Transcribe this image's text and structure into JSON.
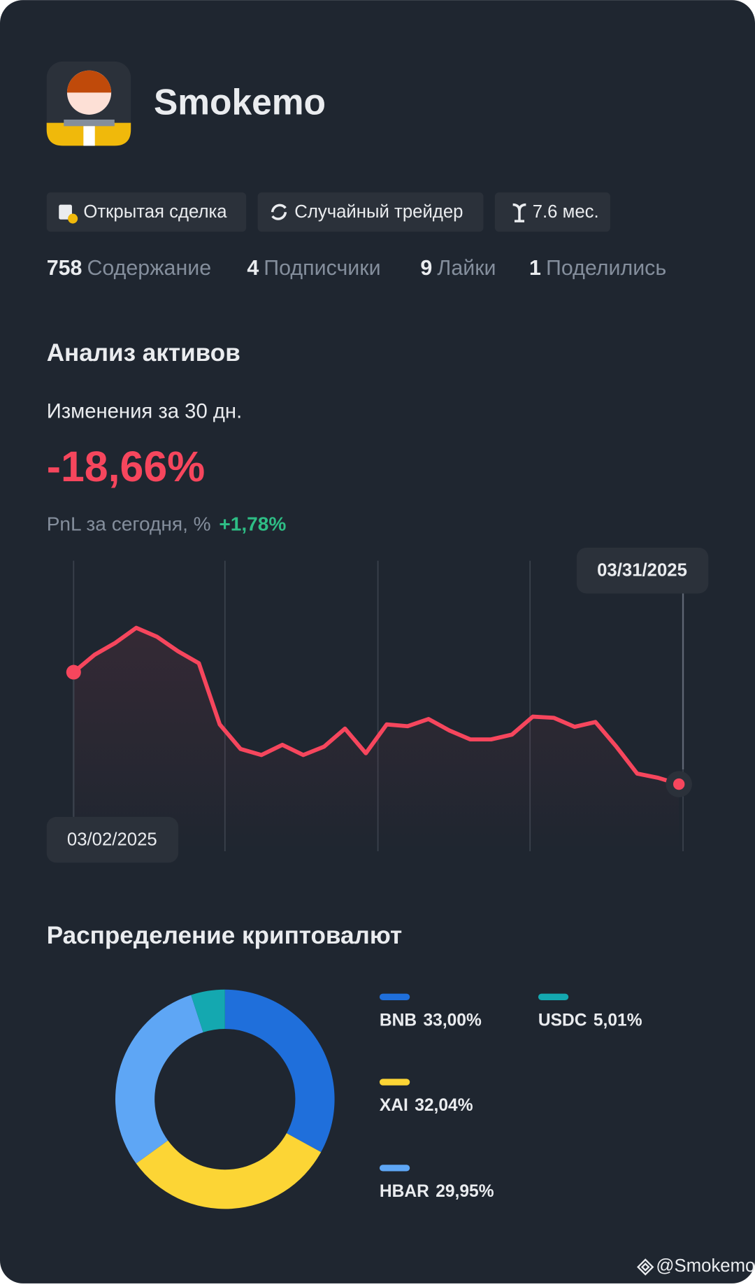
{
  "profile": {
    "name": "Smokemo",
    "badges": [
      "Открытая сделка",
      "Случайный трейдер",
      "7.6 мес."
    ],
    "stats": [
      {
        "count": "758",
        "label": "Содержание"
      },
      {
        "count": "4",
        "label": "Подписчики"
      },
      {
        "count": "9",
        "label": "Лайки"
      },
      {
        "count": "1",
        "label": "Поделились"
      }
    ]
  },
  "analysis": {
    "title": "Анализ активов",
    "period": "Изменения за 30 дн.",
    "change": "-18,66%",
    "pnl_label": "PnL за сегодня, %",
    "pnl_value": "+1,78%"
  },
  "distribution": {
    "title": "Распределение криптовалют"
  },
  "footer": "@Smokemo",
  "chart_data": [
    {
      "type": "line",
      "color": "#f6465d",
      "categories": [
        "03/02/2025",
        null,
        null,
        null,
        null,
        null,
        null,
        null,
        null,
        null,
        null,
        null,
        null,
        null,
        null,
        null,
        null,
        null,
        null,
        null,
        null,
        null,
        null,
        null,
        null,
        null,
        null,
        null,
        null,
        "03/31/2025"
      ],
      "values": [
        0,
        2.9,
        4.9,
        7.4,
        5.9,
        3.5,
        1.5,
        -8.7,
        -12.8,
        -13.8,
        -12.1,
        -13.8,
        -12.4,
        -9.4,
        -13.5,
        -8.7,
        -9.0,
        -7.8,
        -9.7,
        -11.2,
        -11.2,
        -10.4,
        -7.4,
        -7.6,
        -9.1,
        -8.3,
        -12.4,
        -16.9,
        -17.6,
        -18.66
      ]
    },
    {
      "type": "pie",
      "categories": [
        "BNB",
        "XAI",
        "HBAR",
        "USDC"
      ],
      "values": [
        33.0,
        32.04,
        29.95,
        5.01
      ],
      "value_labels": [
        "33,00%",
        "32,04%",
        "29,95%",
        "5,01%"
      ],
      "colors": [
        "#1f6fdb",
        "#fcd535",
        "#5ea6f5",
        "#14a8b0"
      ]
    }
  ]
}
